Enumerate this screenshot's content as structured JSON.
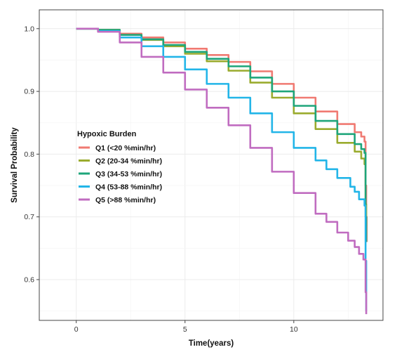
{
  "chart_data": {
    "type": "line",
    "title": "",
    "xlabel": "Time(years)",
    "ylabel": "Survival Probability",
    "xlim": [
      -1.7,
      14.1
    ],
    "ylim": [
      0.535,
      1.03
    ],
    "xticks": [
      0,
      5,
      10
    ],
    "yticks": [
      0.6,
      0.7,
      0.8,
      0.9,
      1.0
    ],
    "ytick_labels": [
      "0.6",
      "0.7",
      "0.8",
      "0.9",
      "1.0"
    ],
    "grid": true,
    "legend": {
      "title": "Hypoxic Burden",
      "position": "inside-left"
    },
    "series": [
      {
        "name": "Q1 (<20 %min/hr)",
        "color": "#F07A72",
        "points": [
          [
            0,
            1.0
          ],
          [
            0.5,
            1.0
          ],
          [
            1,
            0.998
          ],
          [
            2,
            0.992
          ],
          [
            3,
            0.986
          ],
          [
            4,
            0.978
          ],
          [
            5,
            0.968
          ],
          [
            6,
            0.958
          ],
          [
            7,
            0.947
          ],
          [
            8,
            0.932
          ],
          [
            9,
            0.912
          ],
          [
            10,
            0.89
          ],
          [
            11,
            0.868
          ],
          [
            12,
            0.848
          ],
          [
            12.8,
            0.835
          ],
          [
            13.1,
            0.828
          ],
          [
            13.25,
            0.82
          ],
          [
            13.3,
            0.75
          ],
          [
            13.33,
            0.7
          ],
          [
            13.35,
            0.66
          ]
        ]
      },
      {
        "name": "Q2 (20-34 %min/hr)",
        "color": "#9AAB2E",
        "points": [
          [
            0,
            1.0
          ],
          [
            0.5,
            1.0
          ],
          [
            1,
            0.998
          ],
          [
            2,
            0.99
          ],
          [
            3,
            0.982
          ],
          [
            4,
            0.972
          ],
          [
            5,
            0.96
          ],
          [
            6,
            0.948
          ],
          [
            7,
            0.933
          ],
          [
            8,
            0.914
          ],
          [
            9,
            0.89
          ],
          [
            10,
            0.865
          ],
          [
            11,
            0.84
          ],
          [
            12,
            0.818
          ],
          [
            12.8,
            0.804
          ],
          [
            13.1,
            0.793
          ],
          [
            13.25,
            0.784
          ],
          [
            13.3,
            0.72
          ],
          [
            13.33,
            0.685
          ]
        ]
      },
      {
        "name": "Q3 (34-53 %min/hr)",
        "color": "#1EA57A",
        "points": [
          [
            0,
            1.0
          ],
          [
            0.5,
            1.0
          ],
          [
            1,
            0.998
          ],
          [
            2,
            0.99
          ],
          [
            3,
            0.983
          ],
          [
            4,
            0.974
          ],
          [
            5,
            0.963
          ],
          [
            6,
            0.952
          ],
          [
            7,
            0.94
          ],
          [
            8,
            0.922
          ],
          [
            9,
            0.9
          ],
          [
            10,
            0.877
          ],
          [
            11,
            0.853
          ],
          [
            12,
            0.832
          ],
          [
            12.8,
            0.816
          ],
          [
            13.1,
            0.808
          ],
          [
            13.25,
            0.802
          ],
          [
            13.3,
            0.7
          ],
          [
            13.33,
            0.66
          ]
        ]
      },
      {
        "name": "Q4 (53-88 %min/hr)",
        "color": "#22B5E8",
        "points": [
          [
            0,
            1.0
          ],
          [
            0.5,
            1.0
          ],
          [
            1,
            0.996
          ],
          [
            2,
            0.986
          ],
          [
            3,
            0.972
          ],
          [
            4,
            0.955
          ],
          [
            5,
            0.935
          ],
          [
            6,
            0.912
          ],
          [
            7,
            0.89
          ],
          [
            8,
            0.865
          ],
          [
            9,
            0.835
          ],
          [
            10,
            0.81
          ],
          [
            11,
            0.79
          ],
          [
            11.5,
            0.776
          ],
          [
            12,
            0.762
          ],
          [
            12.6,
            0.748
          ],
          [
            12.8,
            0.74
          ],
          [
            13.0,
            0.728
          ],
          [
            13.25,
            0.718
          ],
          [
            13.3,
            0.63
          ],
          [
            13.33,
            0.55
          ]
        ]
      },
      {
        "name": "Q5 (>88 %min/hr)",
        "color": "#C06CC0",
        "points": [
          [
            0,
            1.0
          ],
          [
            0.5,
            1.0
          ],
          [
            1,
            0.995
          ],
          [
            2,
            0.978
          ],
          [
            3,
            0.955
          ],
          [
            4,
            0.93
          ],
          [
            5,
            0.903
          ],
          [
            6,
            0.874
          ],
          [
            7,
            0.846
          ],
          [
            8,
            0.81
          ],
          [
            9,
            0.772
          ],
          [
            10,
            0.738
          ],
          [
            11,
            0.705
          ],
          [
            11.5,
            0.692
          ],
          [
            12,
            0.675
          ],
          [
            12.5,
            0.662
          ],
          [
            12.8,
            0.652
          ],
          [
            13.0,
            0.641
          ],
          [
            13.2,
            0.632
          ],
          [
            13.3,
            0.58
          ],
          [
            13.33,
            0.545
          ]
        ]
      }
    ]
  }
}
